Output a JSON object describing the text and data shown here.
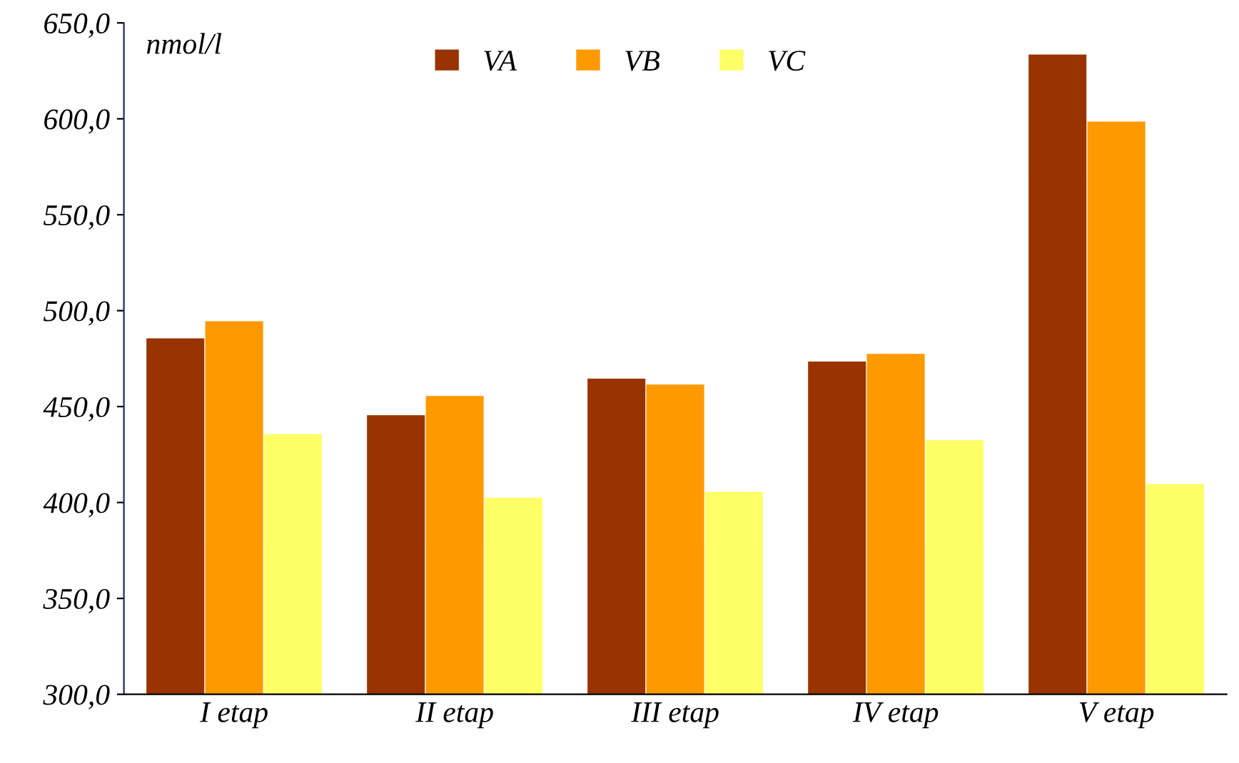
{
  "chart_data": {
    "type": "bar",
    "ylabel": "nmol/l",
    "categories": [
      "I etap",
      "II etap",
      "III etap",
      "IV etap",
      "V etap"
    ],
    "series": [
      {
        "name": "VA",
        "color": "#993300",
        "values": [
          485,
          445,
          464,
          473,
          633
        ]
      },
      {
        "name": "VB",
        "color": "#ff9900",
        "values": [
          494,
          455,
          461,
          477,
          598
        ]
      },
      {
        "name": "VC",
        "color": "#ffff66",
        "values": [
          435,
          402,
          405,
          432,
          409
        ]
      }
    ],
    "ylim": [
      300,
      650
    ],
    "yticks": [
      {
        "value": 300,
        "label": "300,0"
      },
      {
        "value": 350,
        "label": "350,0"
      },
      {
        "value": 400,
        "label": "400,0"
      },
      {
        "value": 450,
        "label": "450,0"
      },
      {
        "value": 500,
        "label": "500,0"
      },
      {
        "value": 550,
        "label": "550,0"
      },
      {
        "value": 600,
        "label": "600,0"
      },
      {
        "value": 650,
        "label": "650,0"
      }
    ],
    "grid": false,
    "legend": "top"
  }
}
